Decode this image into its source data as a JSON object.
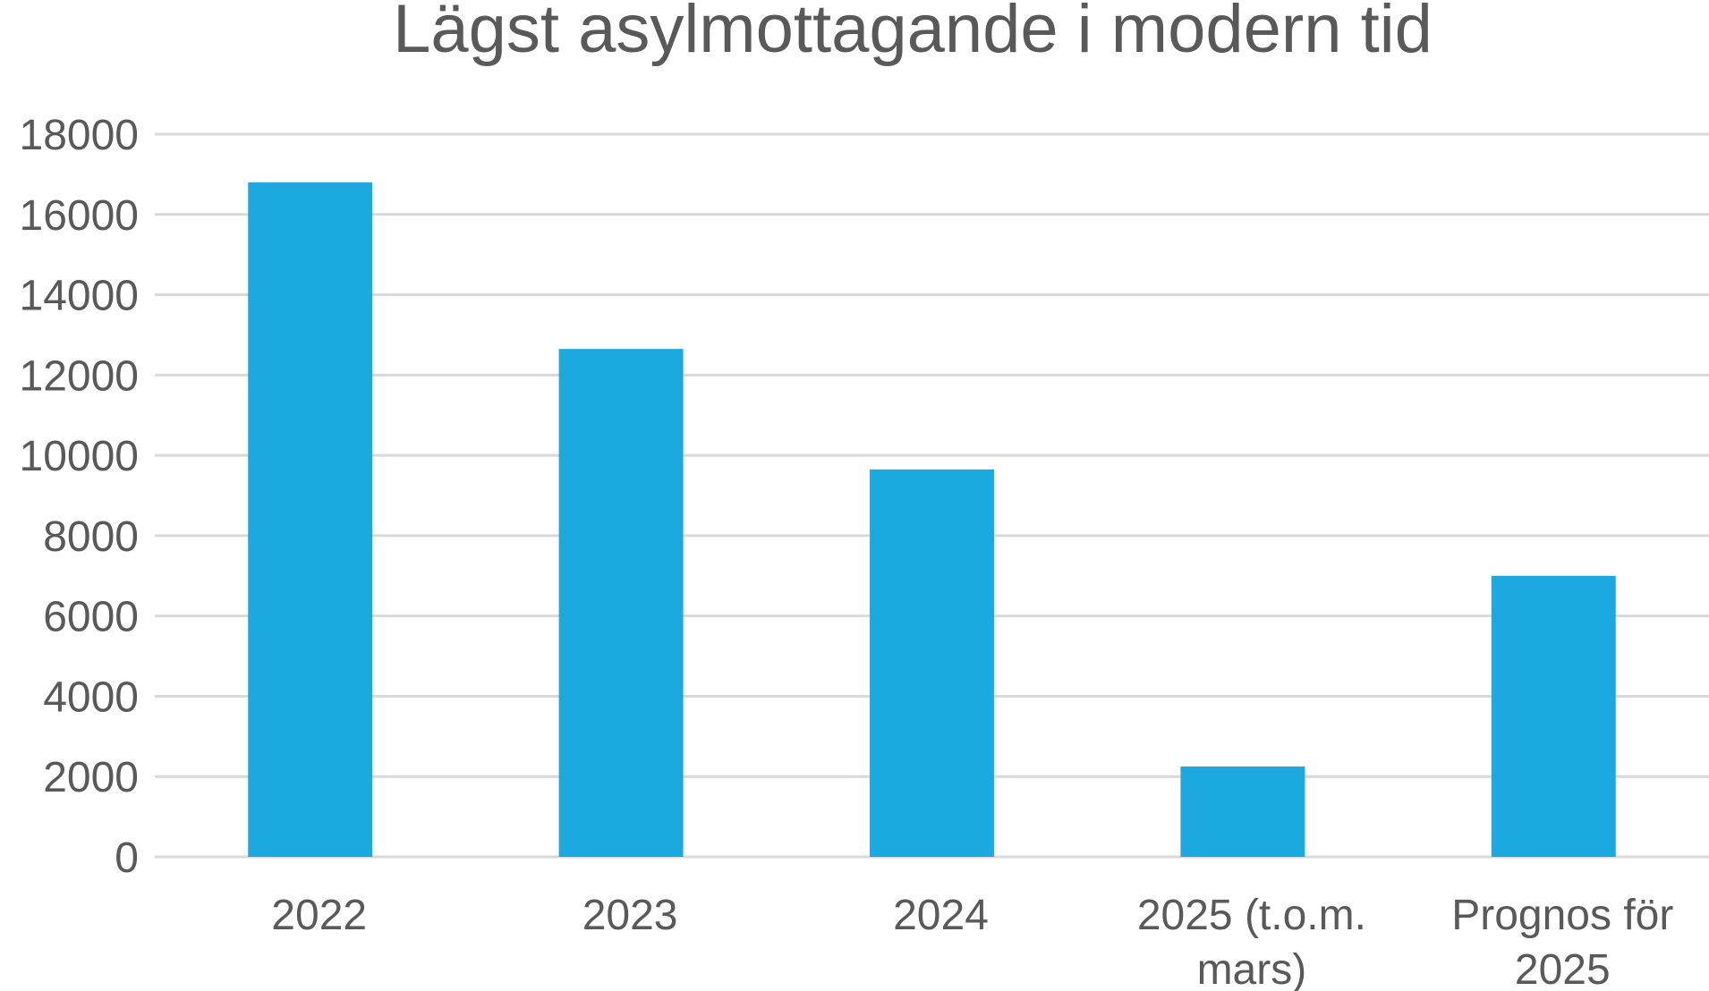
{
  "chart_data": {
    "type": "bar",
    "title": "Lägst asylmottagande i modern tid",
    "categories": [
      [
        "2022"
      ],
      [
        "2023"
      ],
      [
        "2024"
      ],
      [
        "2025 (t.o.m.",
        "mars)"
      ],
      [
        "Prognos för",
        "2025"
      ]
    ],
    "values": [
      16800,
      12650,
      9650,
      2250,
      7000
    ],
    "ylim": [
      0,
      18000
    ],
    "yticks": [
      0,
      2000,
      4000,
      6000,
      8000,
      10000,
      12000,
      14000,
      16000,
      18000
    ],
    "grid": true,
    "legend": "none",
    "bar_color": "#1ca9e0",
    "grid_color": "#d9d9d9",
    "text_color": "#595959"
  }
}
